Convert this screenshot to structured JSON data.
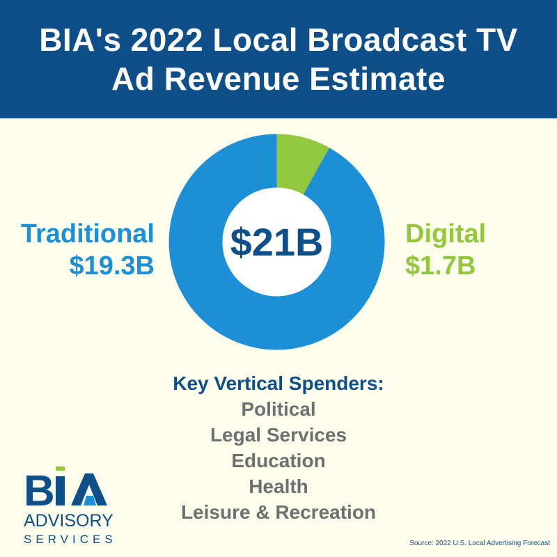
{
  "header": {
    "title_line1": "BIA's 2022 Local Broadcast TV",
    "title_line2": "Ad Revenue Estimate"
  },
  "chart_data": {
    "type": "pie",
    "subtype": "donut",
    "center_label": "$21B",
    "unit": "$B",
    "slices": [
      {
        "name": "Digital",
        "value": 1.7,
        "label": "$1.7B",
        "color": "#93c83e"
      },
      {
        "name": "Traditional",
        "value": 19.3,
        "label": "$19.3B",
        "color": "#1c8fd6"
      }
    ]
  },
  "spenders": {
    "heading": "Key Vertical Spenders:",
    "items": [
      "Political",
      "Legal Services",
      "Education",
      "Health",
      "Leisure & Recreation"
    ]
  },
  "logo": {
    "mark": "BIA",
    "line1": "ADVISORY",
    "line2": "SERVICES",
    "colors": {
      "navy": "#0e4f8a",
      "green": "#93c83e",
      "blue": "#1c8fd6"
    }
  },
  "source": "Source: 2022 U.S. Local Advertising Forecast"
}
